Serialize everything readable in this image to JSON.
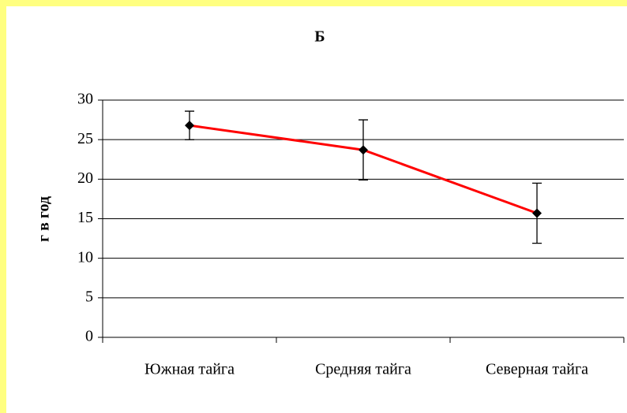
{
  "chart_data": {
    "type": "line",
    "title": "Б",
    "y_label": "г в год",
    "categories": [
      "Южная тайга",
      "Средняя тайга",
      "Северная тайга"
    ],
    "values": [
      26.8,
      23.7,
      15.7
    ],
    "errors": [
      1.8,
      3.8,
      3.8
    ],
    "color": "#ff0000",
    "marker_color": "#000000",
    "ylim": [
      0,
      30
    ],
    "yticks": [
      0,
      5,
      10,
      15,
      20,
      25,
      30
    ],
    "grid": true
  }
}
